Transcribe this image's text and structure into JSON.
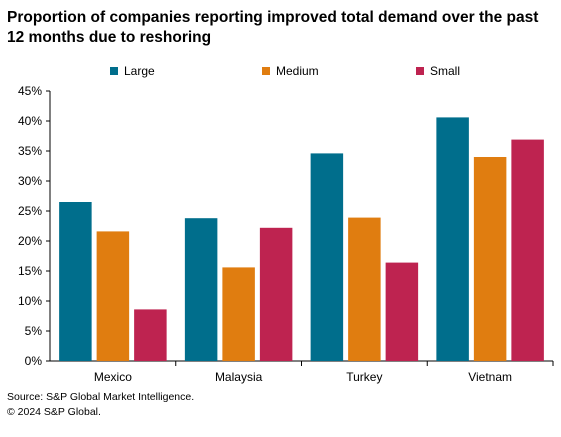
{
  "title": "Proportion of companies  reporting improved total demand over the past 12 months due to reshoring",
  "source": "Source: S&P Global Market Intelligence.",
  "copyright": "© 2024 S&P Global.",
  "colors": {
    "Large": "#006E8C",
    "Medium": "#E07D10",
    "Small": "#BE2350"
  },
  "chart_data": {
    "type": "bar",
    "title": "Proportion of companies  reporting improved total demand over the past 12 months due to reshoring",
    "categories": [
      "Mexico",
      "Malaysia",
      "Turkey",
      "Vietnam"
    ],
    "series": [
      {
        "name": "Large",
        "values": [
          26.5,
          23.8,
          34.6,
          40.6
        ]
      },
      {
        "name": "Medium",
        "values": [
          21.6,
          15.6,
          23.9,
          34.0
        ]
      },
      {
        "name": "Small",
        "values": [
          8.6,
          22.2,
          16.4,
          36.9
        ]
      }
    ],
    "yticks": [
      "0%",
      "5%",
      "10%",
      "15%",
      "20%",
      "25%",
      "30%",
      "35%",
      "40%",
      "45%"
    ],
    "ylim": [
      0,
      45
    ],
    "xlabel": "",
    "ylabel": "",
    "legend_position": "top",
    "grid": false
  }
}
